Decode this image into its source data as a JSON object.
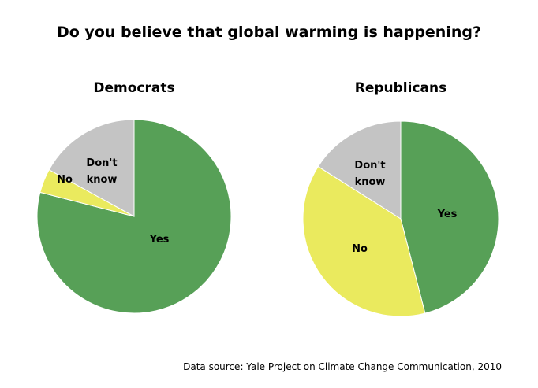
{
  "title": "Do you believe that global warming is happening?",
  "source": "Data source: Yale Project on Climate Change Communication, 2010",
  "colors": {
    "Yes": "#57a057",
    "No": "#eaea5e",
    "Don't know": "#c4c4c4"
  },
  "chart_data": [
    {
      "type": "pie",
      "title": "Democrats",
      "categories": [
        "Yes",
        "No",
        "Don't know"
      ],
      "values": [
        79,
        4,
        17
      ]
    },
    {
      "type": "pie",
      "title": "Republicans",
      "categories": [
        "Yes",
        "No",
        "Don't know"
      ],
      "values": [
        46,
        38,
        16
      ]
    }
  ]
}
